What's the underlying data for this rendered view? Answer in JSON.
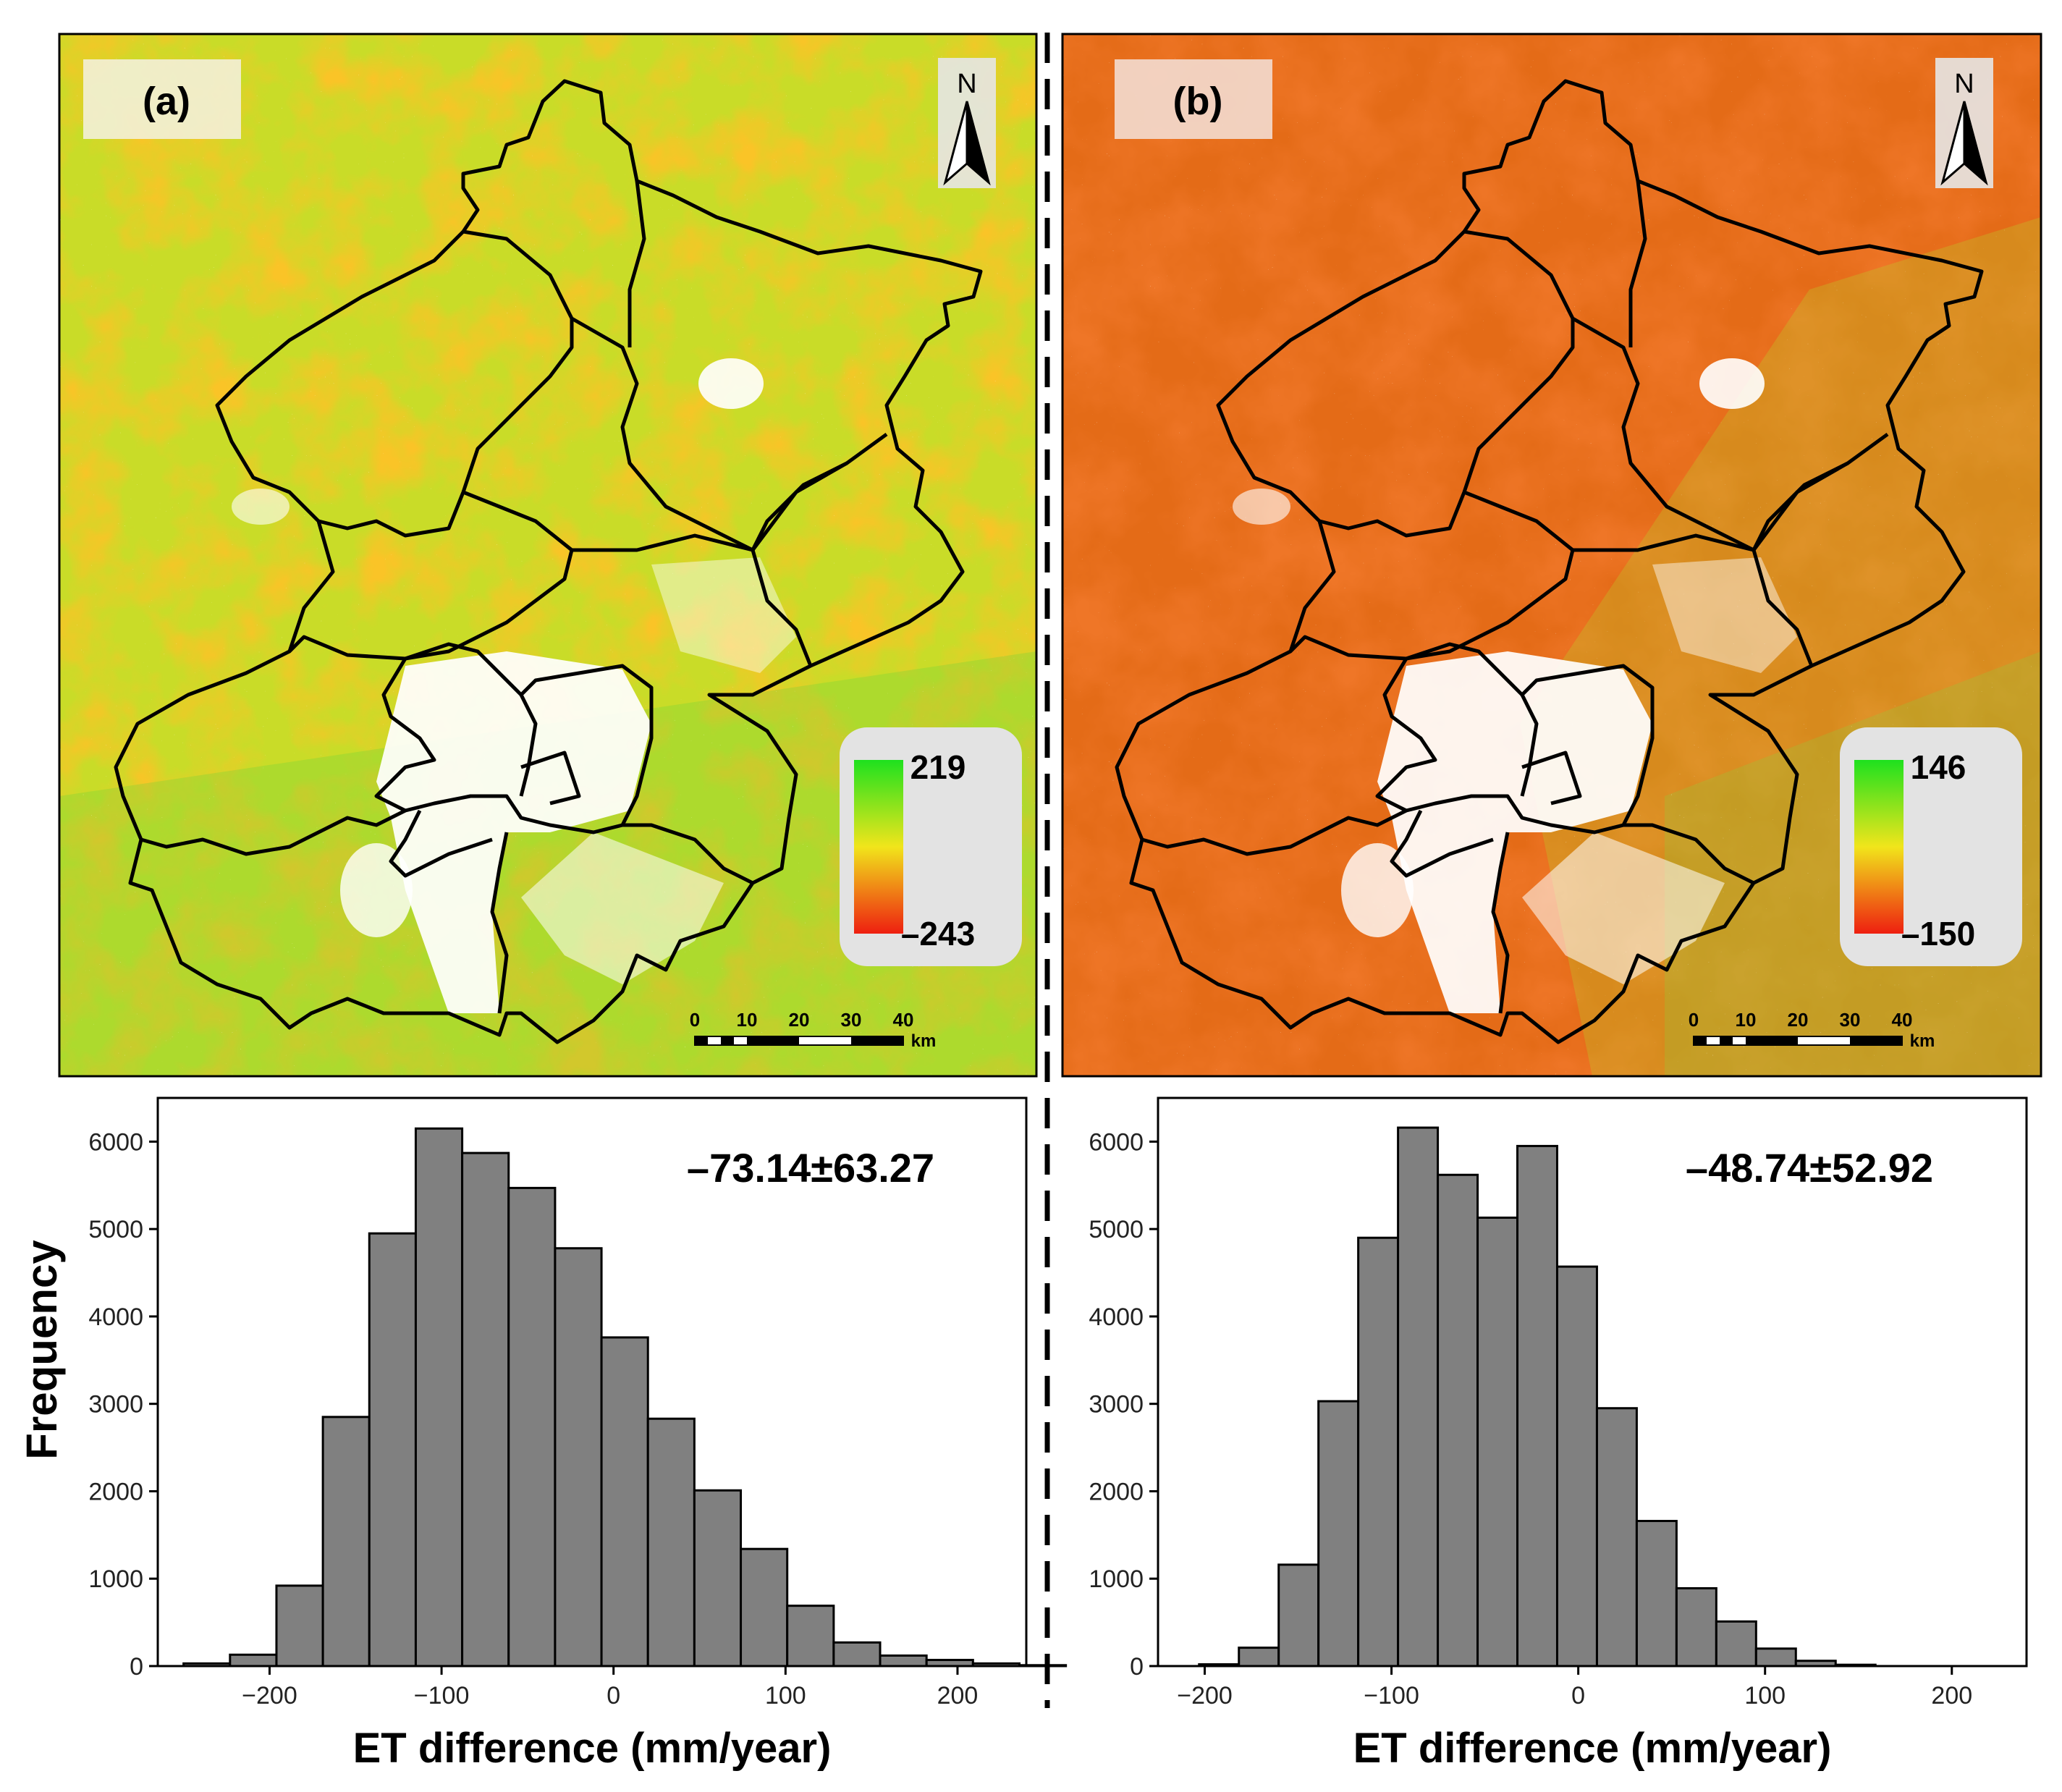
{
  "chart_data": [
    {
      "type": "map",
      "panel_label": "(a)",
      "north_label": "N",
      "legend": {
        "max_label": "219",
        "min_label": "–243",
        "max": 219,
        "min": -243,
        "colors": [
          "#1ee11e",
          "#f1e51b",
          "#ee1f10"
        ]
      },
      "scale_bar": {
        "ticks": [
          "0",
          "10",
          "20",
          "30",
          "40"
        ],
        "unit": "km"
      }
    },
    {
      "type": "map",
      "panel_label": "(b)",
      "north_label": "N",
      "legend": {
        "max_label": "146",
        "min_label": "–150",
        "max": 146,
        "min": -150,
        "colors": [
          "#1ee11e",
          "#f1e51b",
          "#ee1f10"
        ]
      },
      "scale_bar": {
        "ticks": [
          "0",
          "10",
          "20",
          "30",
          "40"
        ],
        "unit": "km"
      }
    },
    {
      "type": "histogram",
      "annotation": "–73.14±63.27",
      "xlabel": "ET difference (mm/year)",
      "ylabel": "Frequency",
      "bin_start": -250,
      "bin_width": 27,
      "values": [
        30,
        130,
        920,
        2850,
        4950,
        6150,
        5870,
        5470,
        4780,
        3760,
        2830,
        2010,
        1340,
        690,
        270,
        120,
        70,
        30,
        10
      ],
      "xlim": [
        -265,
        240
      ],
      "ylim": [
        0,
        6500
      ],
      "xticks": [
        "−200",
        "−100",
        "0",
        "100",
        "200"
      ],
      "xtick_values": [
        -200,
        -100,
        0,
        100,
        200
      ],
      "yticks": [
        "0",
        "1000",
        "2000",
        "3000",
        "4000",
        "5000",
        "6000"
      ],
      "ytick_values": [
        0,
        1000,
        2000,
        3000,
        4000,
        5000,
        6000
      ],
      "bar_color": "#808080"
    },
    {
      "type": "histogram",
      "annotation": "–48.74±52.92",
      "xlabel": "ET difference (mm/year)",
      "ylabel": "Frequency",
      "bin_start": -203,
      "bin_width": 21.3,
      "values": [
        20,
        210,
        1160,
        3030,
        4900,
        6160,
        5620,
        5130,
        5950,
        4570,
        2950,
        1660,
        890,
        510,
        200,
        60,
        15
      ],
      "xlim": [
        -225,
        240
      ],
      "ylim": [
        0,
        6500
      ],
      "xticks": [
        "−200",
        "−100",
        "0",
        "100",
        "200"
      ],
      "xtick_values": [
        -200,
        -100,
        0,
        100,
        200
      ],
      "yticks": [
        "0",
        "1000",
        "2000",
        "3000",
        "4000",
        "5000",
        "6000"
      ],
      "ytick_values": [
        0,
        1000,
        2000,
        3000,
        4000,
        5000,
        6000
      ],
      "bar_color": "#808080"
    }
  ],
  "shared": {
    "ylabel": "Frequency"
  }
}
